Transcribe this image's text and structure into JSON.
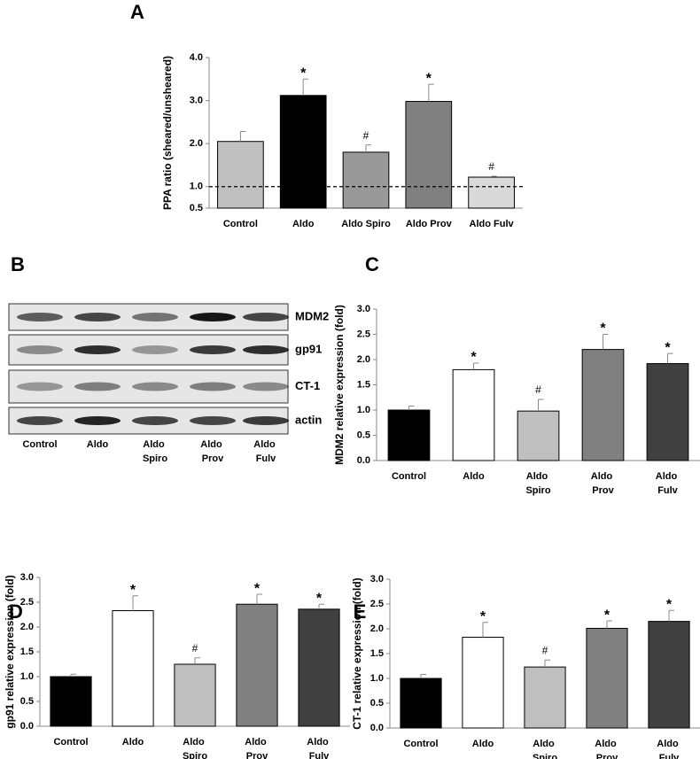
{
  "chart_data": [
    {
      "type": "bar",
      "label": "A",
      "ylabel": "PPA ratio (sheared/unsheared)",
      "categories": [
        "Control",
        "Aldo",
        "Aldo Spiro",
        "Aldo Prov",
        "Aldo Fulv"
      ],
      "values": [
        2.05,
        3.12,
        1.8,
        2.98,
        1.22
      ],
      "errors": [
        0.23,
        0.38,
        0.17,
        0.4,
        0.02
      ],
      "markers": [
        null,
        "*",
        "#",
        "*",
        "#"
      ],
      "colors": [
        "#c0c0c0",
        "#000000",
        "#999999",
        "#808080",
        "#d9d9d9"
      ],
      "ylim": [
        0.5,
        4.0
      ],
      "yticks": [
        {
          "value": 0.5,
          "label": "0.5"
        },
        {
          "value": 1,
          "label": "1.0"
        },
        {
          "value": 2,
          "label": "2.0"
        },
        {
          "value": 3,
          "label": "3.0"
        },
        {
          "value": 4,
          "label": "4.0"
        }
      ],
      "reference_line": 1
    },
    {
      "type": "bar",
      "label": "C",
      "ylabel": "MDM2 relative expression (fold)",
      "categories": [
        "Control",
        "Aldo",
        "Aldo Spiro",
        "Aldo Prov",
        "Aldo Fulv"
      ],
      "values": [
        1.0,
        1.8,
        0.98,
        2.2,
        1.92
      ],
      "errors": [
        0.08,
        0.13,
        0.23,
        0.3,
        0.2
      ],
      "markers": [
        null,
        "*",
        "#",
        "*",
        "*"
      ],
      "colors": [
        "#000000",
        "#ffffff",
        "#bfbfbf",
        "#808080",
        "#404040"
      ],
      "ylim": [
        0,
        3.0
      ],
      "yticks": [
        {
          "value": 0,
          "label": "0.0"
        },
        0.5,
        {
          "value": 1,
          "label": "1.0"
        },
        1.5,
        {
          "value": 2,
          "label": "2.0"
        },
        2.5,
        {
          "value": 3,
          "label": "3.0"
        }
      ]
    },
    {
      "type": "bar",
      "label": "D",
      "ylabel": "gp91 relative expression (fold)",
      "categories": [
        "Control",
        "Aldo",
        "Aldo Spiro",
        "Aldo Prov",
        "Aldo Fulv"
      ],
      "values": [
        1.0,
        2.33,
        1.25,
        2.46,
        2.36
      ],
      "errors": [
        0.05,
        0.3,
        0.13,
        0.2,
        0.1
      ],
      "markers": [
        null,
        "*",
        "#",
        "*",
        "*"
      ],
      "colors": [
        "#000000",
        "#ffffff",
        "#bfbfbf",
        "#808080",
        "#404040"
      ],
      "ylim": [
        0,
        3.0
      ],
      "yticks": [
        {
          "value": 0,
          "label": "0.0"
        },
        0.5,
        {
          "value": 1,
          "label": "1.0"
        },
        1.5,
        {
          "value": 2,
          "label": "2.0"
        },
        2.5,
        {
          "value": 3,
          "label": "3.0"
        }
      ]
    },
    {
      "type": "bar",
      "label": "E",
      "ylabel": "CT-1 relative expression (fold)",
      "categories": [
        "Control",
        "Aldo",
        "Aldo Spiro",
        "Aldo Prov",
        "Aldo Fulv"
      ],
      "values": [
        1.0,
        1.83,
        1.23,
        2.01,
        2.15
      ],
      "errors": [
        0.08,
        0.3,
        0.14,
        0.15,
        0.22
      ],
      "markers": [
        null,
        "*",
        "#",
        "*",
        "*"
      ],
      "colors": [
        "#000000",
        "#ffffff",
        "#bfbfbf",
        "#808080",
        "#404040"
      ],
      "ylim": [
        0,
        3.0
      ],
      "yticks": [
        {
          "value": 0,
          "label": "0.0"
        },
        0.5,
        {
          "value": 1,
          "label": "1.0"
        },
        1.5,
        {
          "value": 2,
          "label": "2.0"
        },
        2.5,
        {
          "value": 3,
          "label": "3.0"
        }
      ]
    }
  ],
  "blot": {
    "label": "B",
    "rows": [
      "MDM2",
      "gp91",
      "CT-1",
      "actin"
    ],
    "lanes": [
      "Control",
      "Aldo",
      "Aldo Spiro",
      "Aldo Prov",
      "Aldo Fulv"
    ]
  }
}
